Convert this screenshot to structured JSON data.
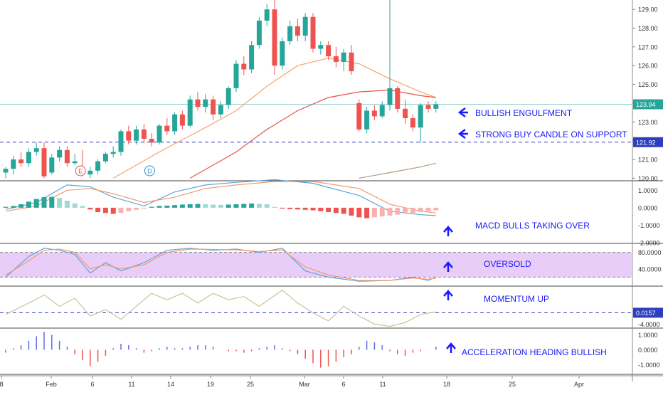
{
  "chart_data": {
    "type": "candlestick",
    "symbol_timeframe": "daily",
    "x_ticks": [
      "8",
      "Feb",
      "6",
      "11",
      "14",
      "19",
      "25",
      "Mar",
      "6",
      "11",
      "18",
      "25",
      "Apr"
    ],
    "price_axis": {
      "ticks": [
        "129.00",
        "128.00",
        "127.00",
        "126.00",
        "125.00",
        "124.00",
        "123.00",
        "122.00",
        "121.00",
        "120.00"
      ],
      "ylim": [
        119.9,
        129.5
      ],
      "last_price": "123.94",
      "support_level": "121.92"
    },
    "candles": [
      {
        "o": 120.3,
        "h": 120.6,
        "l": 120.0,
        "c": 120.5
      },
      {
        "o": 120.5,
        "h": 121.2,
        "l": 120.2,
        "c": 121.0
      },
      {
        "o": 121.0,
        "h": 121.4,
        "l": 120.6,
        "c": 120.8
      },
      {
        "o": 120.8,
        "h": 121.6,
        "l": 120.6,
        "c": 121.4
      },
      {
        "o": 121.4,
        "h": 121.9,
        "l": 121.2,
        "c": 121.6
      },
      {
        "o": 121.6,
        "h": 121.9,
        "l": 120.0,
        "c": 120.1
      },
      {
        "o": 120.3,
        "h": 121.3,
        "l": 120.2,
        "c": 121.1
      },
      {
        "o": 121.1,
        "h": 121.7,
        "l": 120.9,
        "c": 121.5
      },
      {
        "o": 121.5,
        "h": 121.7,
        "l": 120.6,
        "c": 120.8
      },
      {
        "o": 120.8,
        "h": 121.3,
        "l": 120.7,
        "c": 120.9
      },
      {
        "o": 120.5,
        "h": 121.5,
        "l": 120.1,
        "c": 120.2
      },
      {
        "o": 120.2,
        "h": 120.6,
        "l": 120.0,
        "c": 120.4
      },
      {
        "o": 120.4,
        "h": 121.0,
        "l": 120.2,
        "c": 120.9
      },
      {
        "o": 120.9,
        "h": 121.4,
        "l": 120.8,
        "c": 121.3
      },
      {
        "o": 121.3,
        "h": 121.7,
        "l": 121.1,
        "c": 121.4
      },
      {
        "o": 121.4,
        "h": 122.6,
        "l": 121.2,
        "c": 122.5
      },
      {
        "o": 122.5,
        "h": 122.8,
        "l": 121.8,
        "c": 122.0
      },
      {
        "o": 122.0,
        "h": 122.8,
        "l": 121.8,
        "c": 122.6
      },
      {
        "o": 122.6,
        "h": 122.9,
        "l": 121.9,
        "c": 122.1
      },
      {
        "o": 122.1,
        "h": 122.4,
        "l": 121.7,
        "c": 121.9
      },
      {
        "o": 121.9,
        "h": 122.9,
        "l": 121.8,
        "c": 122.8
      },
      {
        "o": 122.8,
        "h": 123.2,
        "l": 122.3,
        "c": 122.5
      },
      {
        "o": 122.5,
        "h": 123.5,
        "l": 122.3,
        "c": 123.4
      },
      {
        "o": 123.4,
        "h": 123.6,
        "l": 122.6,
        "c": 122.8
      },
      {
        "o": 122.8,
        "h": 124.4,
        "l": 122.7,
        "c": 124.2
      },
      {
        "o": 124.2,
        "h": 124.6,
        "l": 123.6,
        "c": 123.8
      },
      {
        "o": 123.8,
        "h": 124.5,
        "l": 123.5,
        "c": 124.2
      },
      {
        "o": 124.2,
        "h": 124.4,
        "l": 123.1,
        "c": 123.4
      },
      {
        "o": 123.4,
        "h": 124.1,
        "l": 123.2,
        "c": 123.9
      },
      {
        "o": 123.9,
        "h": 124.9,
        "l": 123.7,
        "c": 124.8
      },
      {
        "o": 124.8,
        "h": 126.3,
        "l": 124.6,
        "c": 126.1
      },
      {
        "o": 126.1,
        "h": 126.5,
        "l": 125.5,
        "c": 125.8
      },
      {
        "o": 125.8,
        "h": 127.3,
        "l": 125.6,
        "c": 127.1
      },
      {
        "o": 127.1,
        "h": 128.6,
        "l": 126.9,
        "c": 128.4
      },
      {
        "o": 128.4,
        "h": 129.3,
        "l": 128.1,
        "c": 129.0
      },
      {
        "o": 129.0,
        "h": 129.5,
        "l": 125.5,
        "c": 126.0
      },
      {
        "o": 126.0,
        "h": 127.5,
        "l": 125.8,
        "c": 127.3
      },
      {
        "o": 127.3,
        "h": 128.4,
        "l": 127.1,
        "c": 128.1
      },
      {
        "o": 128.1,
        "h": 128.5,
        "l": 127.3,
        "c": 127.6
      },
      {
        "o": 127.6,
        "h": 128.8,
        "l": 127.3,
        "c": 128.6
      },
      {
        "o": 128.6,
        "h": 128.8,
        "l": 126.7,
        "c": 126.9
      },
      {
        "o": 126.9,
        "h": 127.3,
        "l": 126.6,
        "c": 127.1
      },
      {
        "o": 127.1,
        "h": 127.3,
        "l": 126.3,
        "c": 126.5
      },
      {
        "o": 126.5,
        "h": 127.0,
        "l": 125.9,
        "c": 126.2
      },
      {
        "o": 126.2,
        "h": 126.9,
        "l": 125.7,
        "c": 126.7
      },
      {
        "o": 126.7,
        "h": 127.1,
        "l": 125.5,
        "c": 125.7
      },
      {
        "o": 124.0,
        "h": 124.2,
        "l": 122.5,
        "c": 122.6
      },
      {
        "o": 122.6,
        "h": 123.8,
        "l": 122.4,
        "c": 123.6
      },
      {
        "o": 123.6,
        "h": 123.9,
        "l": 123.1,
        "c": 123.3
      },
      {
        "o": 123.3,
        "h": 124.1,
        "l": 123.2,
        "c": 123.9
      },
      {
        "o": 123.9,
        "h": 129.5,
        "l": 123.6,
        "c": 124.8
      },
      {
        "o": 124.8,
        "h": 124.9,
        "l": 123.5,
        "c": 123.7
      },
      {
        "o": 123.7,
        "h": 124.2,
        "l": 122.9,
        "c": 123.2
      },
      {
        "o": 123.2,
        "h": 123.4,
        "l": 122.5,
        "c": 122.7
      },
      {
        "o": 122.7,
        "h": 124.0,
        "l": 121.9,
        "c": 123.9
      },
      {
        "o": 123.9,
        "h": 124.1,
        "l": 123.5,
        "c": 123.7
      },
      {
        "o": 123.7,
        "h": 124.1,
        "l": 123.5,
        "c": 123.94
      }
    ],
    "event_markers": [
      {
        "label": "E",
        "color": "#e84a4a",
        "candle_index": 9
      },
      {
        "label": "D",
        "color": "#2e8fbf",
        "candle_index": 18
      }
    ],
    "moving_averages": [
      {
        "color": "#f5a46b",
        "points": [
          [
            14,
            120.0
          ],
          [
            20,
            121.4
          ],
          [
            26,
            122.7
          ],
          [
            30,
            123.6
          ],
          [
            34,
            124.9
          ],
          [
            38,
            126.0
          ],
          [
            42,
            126.4
          ],
          [
            46,
            126.1
          ],
          [
            50,
            125.3
          ],
          [
            54,
            124.6
          ],
          [
            56,
            124.3
          ]
        ]
      },
      {
        "color": "#e8504f",
        "points": [
          [
            24,
            120.0
          ],
          [
            30,
            121.4
          ],
          [
            34,
            122.6
          ],
          [
            38,
            123.6
          ],
          [
            42,
            124.3
          ],
          [
            46,
            124.6
          ],
          [
            50,
            124.7
          ],
          [
            54,
            124.4
          ],
          [
            56,
            124.3
          ]
        ]
      },
      {
        "color": "#b59a82",
        "points": [
          [
            46,
            120.0
          ],
          [
            50,
            120.3
          ],
          [
            54,
            120.6
          ],
          [
            56,
            120.8
          ]
        ]
      }
    ],
    "macd": {
      "axis_ticks": [
        "1.0000",
        "0.0000",
        "-1.0000",
        "-2.0000"
      ],
      "ylim": [
        -2.0,
        1.5
      ],
      "histogram": [
        0.05,
        0.1,
        0.2,
        0.35,
        0.5,
        0.6,
        0.62,
        0.55,
        0.4,
        0.25,
        0.1,
        -0.1,
        -0.25,
        -0.3,
        -0.35,
        -0.3,
        -0.2,
        -0.12,
        -0.05,
        0.05,
        0.1,
        0.12,
        0.15,
        0.18,
        0.2,
        0.22,
        0.2,
        0.18,
        0.16,
        0.18,
        0.2,
        0.22,
        0.24,
        0.22,
        0.2,
        0.05,
        -0.05,
        -0.08,
        -0.1,
        -0.12,
        -0.15,
        -0.2,
        -0.25,
        -0.3,
        -0.35,
        -0.45,
        -0.55,
        -0.6,
        -0.55,
        -0.5,
        -0.45,
        -0.4,
        -0.35,
        -0.3,
        -0.25,
        -0.2,
        -0.15
      ],
      "macd_line": [
        [
          0,
          -0.1
        ],
        [
          4,
          0.3
        ],
        [
          8,
          1.3
        ],
        [
          11,
          1.2
        ],
        [
          14,
          0.6
        ],
        [
          18,
          0.1
        ],
        [
          22,
          0.9
        ],
        [
          26,
          1.3
        ],
        [
          30,
          1.45
        ],
        [
          35,
          1.6
        ],
        [
          40,
          1.4
        ],
        [
          46,
          0.7
        ],
        [
          50,
          -0.2
        ],
        [
          54,
          -0.4
        ],
        [
          56,
          -0.45
        ]
      ],
      "signal_line": [
        [
          0,
          -0.2
        ],
        [
          4,
          0.1
        ],
        [
          8,
          1.0
        ],
        [
          11,
          1.1
        ],
        [
          14,
          0.8
        ],
        [
          18,
          0.3
        ],
        [
          22,
          0.6
        ],
        [
          26,
          1.1
        ],
        [
          30,
          1.3
        ],
        [
          35,
          1.5
        ],
        [
          40,
          1.5
        ],
        [
          46,
          1.1
        ],
        [
          50,
          0.2
        ],
        [
          54,
          -0.2
        ],
        [
          56,
          -0.3
        ]
      ]
    },
    "stochastic": {
      "axis_ticks": [
        "80.0000",
        "40.0000"
      ],
      "ylim": [
        0,
        100
      ],
      "band": [
        20,
        80
      ],
      "k_line": [
        [
          0,
          20
        ],
        [
          3,
          70
        ],
        [
          5,
          90
        ],
        [
          7,
          85
        ],
        [
          9,
          75
        ],
        [
          11,
          30
        ],
        [
          13,
          55
        ],
        [
          15,
          35
        ],
        [
          18,
          55
        ],
        [
          21,
          85
        ],
        [
          24,
          90
        ],
        [
          27,
          85
        ],
        [
          30,
          88
        ],
        [
          33,
          80
        ],
        [
          36,
          90
        ],
        [
          39,
          35
        ],
        [
          42,
          20
        ],
        [
          46,
          10
        ],
        [
          50,
          12
        ],
        [
          53,
          20
        ],
        [
          55,
          12
        ],
        [
          56,
          20
        ]
      ],
      "d_line": [
        [
          0,
          25
        ],
        [
          3,
          60
        ],
        [
          5,
          85
        ],
        [
          7,
          88
        ],
        [
          9,
          80
        ],
        [
          11,
          40
        ],
        [
          13,
          50
        ],
        [
          15,
          40
        ],
        [
          18,
          50
        ],
        [
          21,
          80
        ],
        [
          24,
          88
        ],
        [
          27,
          87
        ],
        [
          30,
          86
        ],
        [
          33,
          82
        ],
        [
          36,
          86
        ],
        [
          39,
          45
        ],
        [
          42,
          25
        ],
        [
          46,
          12
        ],
        [
          50,
          12
        ],
        [
          53,
          18
        ],
        [
          55,
          15
        ],
        [
          56,
          18
        ]
      ]
    },
    "momentum": {
      "axis_ticks": [
        "-4.0000"
      ],
      "ylim": [
        -4.5,
        8
      ],
      "level": "0.0157",
      "line": [
        [
          0,
          -0.5
        ],
        [
          3,
          3
        ],
        [
          5,
          5.5
        ],
        [
          7,
          2
        ],
        [
          9,
          4.5
        ],
        [
          11,
          -1
        ],
        [
          13,
          1
        ],
        [
          15,
          -2
        ],
        [
          17,
          2
        ],
        [
          19,
          6
        ],
        [
          21,
          4
        ],
        [
          23,
          6
        ],
        [
          25,
          3
        ],
        [
          27,
          6
        ],
        [
          29,
          4
        ],
        [
          31,
          5
        ],
        [
          33,
          2
        ],
        [
          36,
          7
        ],
        [
          38,
          3
        ],
        [
          40,
          0
        ],
        [
          42,
          -2.5
        ],
        [
          44,
          2
        ],
        [
          46,
          -1
        ],
        [
          48,
          -3.5
        ],
        [
          50,
          -4.2
        ],
        [
          52,
          -3
        ],
        [
          54,
          -0.5
        ],
        [
          56,
          0.3
        ]
      ]
    },
    "acceleration": {
      "axis_ticks": [
        "1.0000",
        "0.0000",
        "-1.0000"
      ],
      "ylim": [
        -1.6,
        1.4
      ],
      "bars": [
        -0.2,
        0.1,
        0.3,
        0.6,
        0.9,
        1.2,
        1.0,
        0.6,
        0.2,
        -0.3,
        -0.7,
        -1.1,
        -0.8,
        -0.4,
        0.1,
        0.4,
        0.3,
        0.1,
        -0.2,
        -0.1,
        0.1,
        0.2,
        0.1,
        0.1,
        0.2,
        0.3,
        0.3,
        0.2,
        0.0,
        -0.1,
        -0.1,
        -0.2,
        -0.1,
        0.1,
        0.2,
        0.3,
        0.1,
        -0.1,
        -0.3,
        -0.6,
        -0.9,
        -1.2,
        -1.1,
        -0.8,
        -0.5,
        -0.3,
        0.2,
        0.6,
        0.5,
        0.3,
        -0.1,
        -0.3,
        -0.4,
        -0.2,
        -0.1,
        0.0,
        0.2
      ]
    },
    "annotations": [
      {
        "text": "BULLISH ENGULFMENT",
        "arrow": "left"
      },
      {
        "text": "STRONG BUY CANDLE ON SUPPORT",
        "arrow": "left"
      },
      {
        "text": "MACD BULLS TAKING OVER",
        "arrow": "up"
      },
      {
        "text": "OVERSOLD",
        "arrow": "up"
      },
      {
        "text": "MOMENTUM UP",
        "arrow": "up"
      },
      {
        "text": "ACCELERATION HEADING BULLISH",
        "arrow": "up"
      }
    ]
  },
  "colors": {
    "bull": "#26a69a",
    "bear": "#ef5350",
    "annotation": "#1a1aff",
    "stoch_band": "#e8cdf8",
    "macd_line": "#5aa7d8",
    "signal_line": "#f29a6d",
    "momentum_line": "#c7c49a",
    "accel_pos": "#5b6df0",
    "accel_neg": "#ef5350",
    "last_price_badge": "#26a69a",
    "support_badge": "#2d3fbf"
  }
}
